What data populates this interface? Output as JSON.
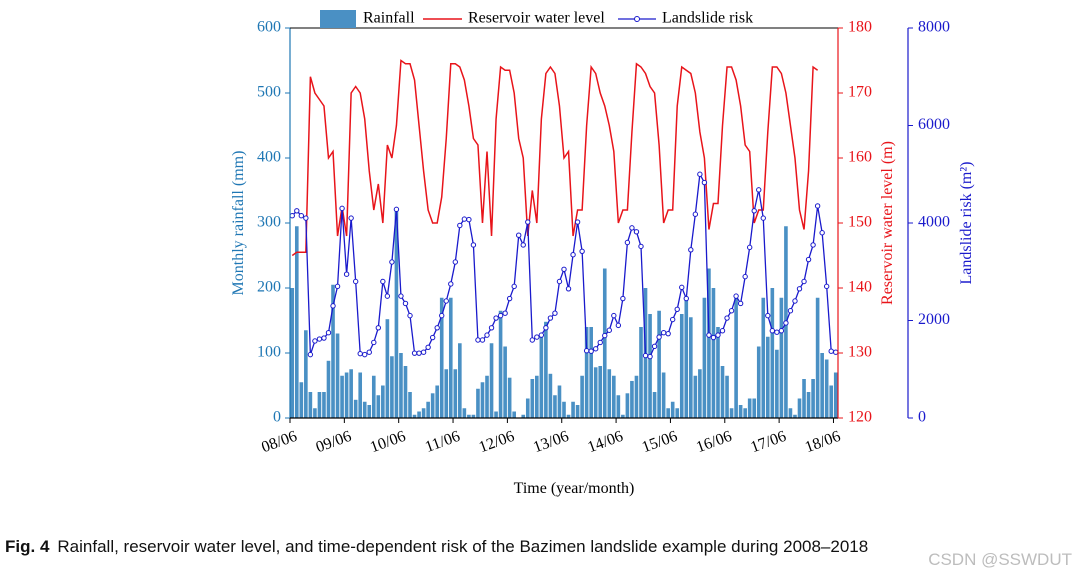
{
  "chart_data": {
    "type": "bar+line",
    "x_ticks": [
      "08/06",
      "09/06",
      "10/06",
      "11/06",
      "12/06",
      "13/06",
      "14/06",
      "15/06",
      "16/06",
      "17/06",
      "18/06"
    ],
    "xlabel": "Time (year/month)",
    "axes": {
      "left": {
        "label": "Monthly rainfall (mm)",
        "range": [
          0,
          600
        ],
        "ticks": [
          0,
          100,
          200,
          300,
          400,
          500,
          600
        ],
        "color": "#1f77b4"
      },
      "right1": {
        "label": "Reservoir water level (m)",
        "range": [
          120,
          180
        ],
        "ticks": [
          120,
          130,
          140,
          150,
          160,
          170,
          180
        ],
        "color": "#e8141a"
      },
      "right2": {
        "label": "Landslide risk (m²)",
        "range": [
          0,
          8000
        ],
        "ticks": [
          0,
          2000,
          4000,
          6000,
          8000
        ],
        "color": "#1a1acc"
      }
    },
    "legend": {
      "placement": "top",
      "entries": [
        "Rainfall",
        "Reservoir water level",
        "Landslide risk"
      ]
    },
    "series": [
      {
        "name": "Rainfall",
        "type": "bar",
        "axis": "left",
        "color": "#4a90c4",
        "values": [
          200,
          295,
          55,
          135,
          40,
          15,
          40,
          40,
          88,
          205,
          130,
          65,
          70,
          75,
          28,
          70,
          25,
          20,
          65,
          35,
          50,
          152,
          95,
          320,
          100,
          80,
          40,
          5,
          10,
          15,
          25,
          38,
          50,
          185,
          75,
          185,
          75,
          115,
          15,
          5,
          5,
          45,
          55,
          65,
          115,
          10,
          165,
          110,
          62,
          10,
          0,
          5,
          30,
          60,
          65,
          130,
          148,
          68,
          35,
          50,
          25,
          5,
          25,
          20,
          65,
          140,
          140,
          78,
          80,
          230,
          75,
          65,
          35,
          5,
          38,
          57,
          65,
          140,
          200,
          160,
          40,
          165,
          70,
          15,
          25,
          15,
          160,
          187,
          155,
          65,
          75,
          185,
          230,
          200,
          140,
          80,
          65,
          15,
          185,
          20,
          15,
          30,
          30,
          110,
          185,
          125,
          200,
          105,
          185,
          295,
          15,
          5,
          30,
          60,
          40,
          60,
          185,
          100,
          90,
          50,
          70
        ]
      },
      {
        "name": "Reservoir water level",
        "type": "line",
        "axis": "right1",
        "color": "#e8141a",
        "values": [
          145,
          145.5,
          145.5,
          145.5,
          172.5,
          170,
          169,
          168,
          160,
          161,
          148,
          152.5,
          148,
          170,
          171,
          170,
          166,
          158,
          152,
          156,
          150,
          162,
          160,
          165,
          175,
          174.5,
          174.5,
          172,
          165,
          158,
          152,
          150,
          150,
          154,
          163,
          174.5,
          174.5,
          174,
          172,
          168,
          163,
          162,
          150,
          161,
          148,
          166,
          174,
          173.5,
          173.5,
          170,
          163,
          160,
          148,
          155,
          150,
          166,
          173,
          174,
          173,
          168,
          160,
          161,
          148,
          152,
          152,
          165,
          174,
          173,
          170,
          168,
          165,
          161,
          150,
          152,
          152,
          164,
          174.5,
          174,
          173,
          171,
          170,
          162,
          150,
          152,
          152,
          168,
          174,
          173.5,
          173,
          170,
          164,
          160,
          149,
          153,
          153,
          165,
          174,
          174,
          172,
          168,
          162,
          161,
          150,
          152,
          152,
          164,
          174,
          174,
          173,
          170,
          165,
          160,
          152,
          149,
          158,
          174,
          173.5
        ]
      },
      {
        "name": "Landslide risk",
        "type": "line-marker",
        "axis": "right2",
        "color": "#1a1acc",
        "values": [
          4150,
          4250,
          4150,
          4100,
          1300,
          1580,
          1620,
          1640,
          1750,
          2300,
          2700,
          4300,
          2950,
          4100,
          2800,
          1320,
          1300,
          1350,
          1550,
          1850,
          2800,
          2500,
          3200,
          4280,
          2500,
          2350,
          2100,
          1330,
          1330,
          1350,
          1450,
          1650,
          1850,
          2100,
          2400,
          2750,
          3200,
          3950,
          4080,
          4070,
          3550,
          1600,
          1600,
          1700,
          1850,
          2050,
          2100,
          2150,
          2450,
          2700,
          3750,
          3550,
          4020,
          1600,
          1660,
          1700,
          1850,
          2050,
          2150,
          2800,
          3050,
          2650,
          3350,
          4020,
          3420,
          1380,
          1370,
          1420,
          1550,
          1690,
          1800,
          2100,
          1900,
          2450,
          3600,
          3900,
          3820,
          3520,
          1280,
          1260,
          1470,
          1660,
          1750,
          1730,
          2020,
          2230,
          2680,
          2450,
          3450,
          4180,
          5000,
          4830,
          1700,
          1650,
          1700,
          1790,
          2050,
          2200,
          2500,
          2350,
          2900,
          3500,
          4250,
          4680,
          4100,
          2100,
          1790,
          1760,
          1790,
          1950,
          2200,
          2400,
          2650,
          2800,
          3250,
          3550,
          4350,
          3800,
          2700,
          1370,
          1350
        ]
      }
    ]
  },
  "caption": {
    "fig_label": "Fig. 4",
    "text": "Rainfall, reservoir water level, and time-dependent risk of the Bazimen landslide example during 2008–2018"
  },
  "watermark": "CSDN @SSWDUT"
}
